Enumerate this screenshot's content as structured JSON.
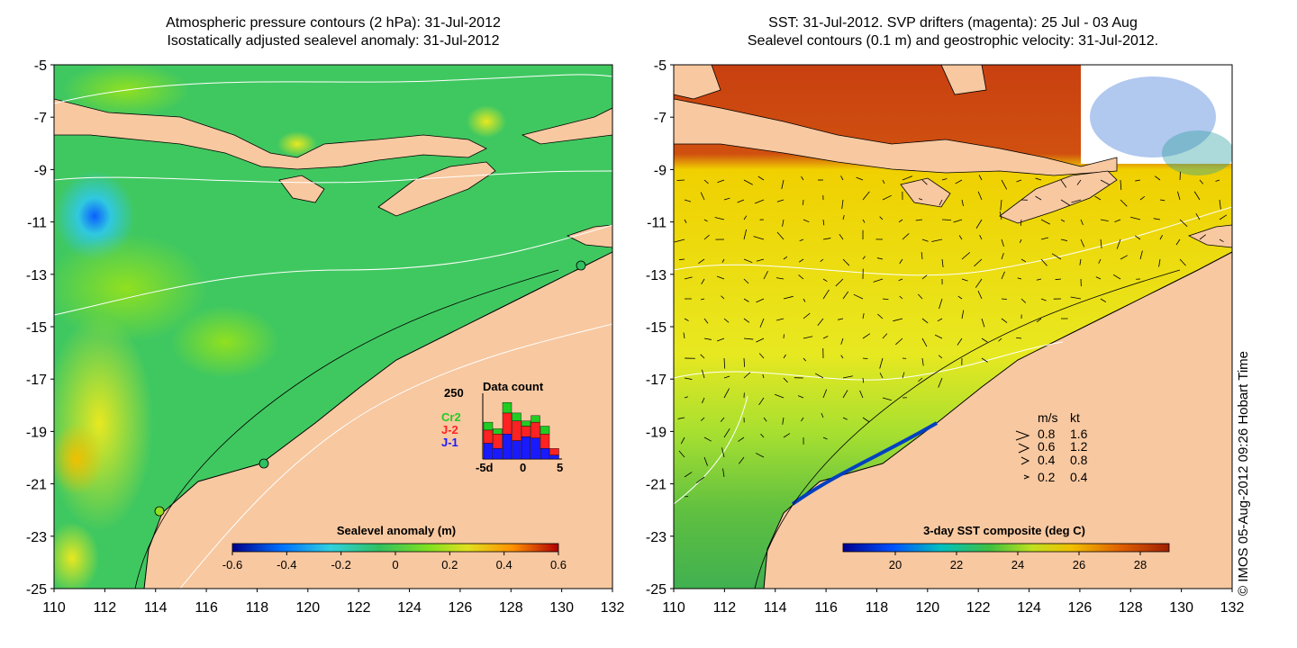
{
  "left_panel": {
    "title_line1": "Atmospheric pressure contours (2 hPa): 31-Jul-2012",
    "title_line2": "Isostatically adjusted sealevel anomaly: 31-Jul-2012",
    "colorbar": {
      "label": "Sealevel anomaly (m)",
      "ticks": [
        "-0.6",
        "-0.4",
        "-0.2",
        "0",
        "0.2",
        "0.4",
        "0.6"
      ]
    },
    "inset": {
      "title": "Data count",
      "ymax_label": "250",
      "xticks": [
        "-5d",
        "0",
        "5"
      ],
      "legend": [
        {
          "label": "Cr2",
          "color": "#22cc22"
        },
        {
          "label": "J-2",
          "color": "#ff2222"
        },
        {
          "label": "J-1",
          "color": "#1a1aff"
        }
      ],
      "bars": [
        {
          "green": 30,
          "red": 50,
          "blue": 60
        },
        {
          "green": 20,
          "red": 55,
          "blue": 40
        },
        {
          "green": 40,
          "red": 80,
          "blue": 95
        },
        {
          "green": 30,
          "red": 75,
          "blue": 70
        },
        {
          "green": 20,
          "red": 40,
          "blue": 85
        },
        {
          "green": 25,
          "red": 60,
          "blue": 80
        },
        {
          "green": 30,
          "red": 55,
          "blue": 40
        },
        {
          "green": 0,
          "red": 25,
          "blue": 15
        }
      ]
    }
  },
  "right_panel": {
    "title_line1": "SST: 31-Jul-2012. SVP drifters (magenta): 25 Jul - 03 Aug",
    "title_line2": "Sealevel contours (0.1 m) and geostrophic velocity: 31-Jul-2012.",
    "colorbar": {
      "label": "3-day SST composite (deg C)",
      "ticks": [
        "20",
        "22",
        "24",
        "26",
        "28"
      ]
    },
    "velocity_legend": {
      "header_ms": "m/s",
      "header_kt": "kt",
      "rows": [
        {
          "ms": "0.8",
          "kt": "1.6"
        },
        {
          "ms": "0.6",
          "kt": "1.2"
        },
        {
          "ms": "0.4",
          "kt": "0.8"
        },
        {
          "ms": "0.2",
          "kt": "0.4"
        }
      ]
    }
  },
  "axes": {
    "y_ticks": [
      "-5",
      "-7",
      "-9",
      "-11",
      "-13",
      "-15",
      "-17",
      "-19",
      "-21",
      "-23",
      "-25"
    ],
    "x_ticks": [
      "110",
      "112",
      "114",
      "116",
      "118",
      "120",
      "122",
      "124",
      "126",
      "128",
      "130",
      "132"
    ]
  },
  "credit": "© IMOS 05-Aug-2012 09:26 Hobart Time",
  "colors": {
    "land": "#f8c8a0",
    "sla_ramp": [
      "#00008b",
      "#0070ff",
      "#30d0e0",
      "#30c060",
      "#80e020",
      "#e0e020",
      "#ff9000",
      "#b00000"
    ],
    "sst_ramp": [
      "#000090",
      "#0050ff",
      "#00c0c0",
      "#40c040",
      "#c0e020",
      "#f0c000",
      "#e06000",
      "#a02000"
    ]
  }
}
